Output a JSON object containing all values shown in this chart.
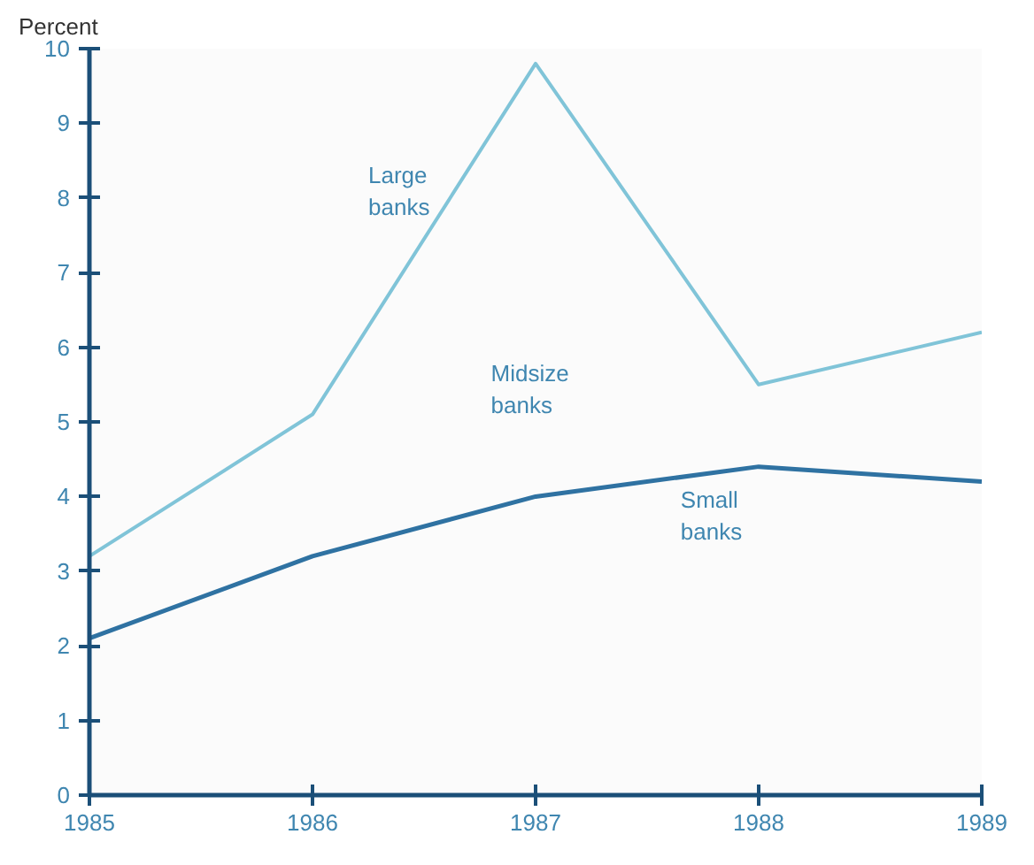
{
  "chart_data": {
    "type": "line",
    "ylabel": "Percent",
    "x": [
      1985,
      1986,
      1987,
      1988,
      1989
    ],
    "series": [
      {
        "name": "Large banks",
        "color": "#80c4d8",
        "values": [
          3.2,
          5.1,
          9.8,
          5.5,
          6.2
        ]
      },
      {
        "name": "Small banks",
        "color": "#2f72a2",
        "values": [
          2.1,
          3.2,
          4.0,
          4.4,
          4.2
        ]
      }
    ],
    "xlim": [
      1985,
      1989
    ],
    "xticks": [
      1985,
      1986,
      1987,
      1988,
      1989
    ],
    "ylim": [
      0,
      10
    ],
    "yticks": [
      0,
      1,
      2,
      3,
      4,
      5,
      6,
      7,
      8,
      9,
      10
    ],
    "annotations": [
      "Midsize banks"
    ],
    "grid": false,
    "legend": false,
    "line_style": "solid",
    "marker": "none"
  }
}
